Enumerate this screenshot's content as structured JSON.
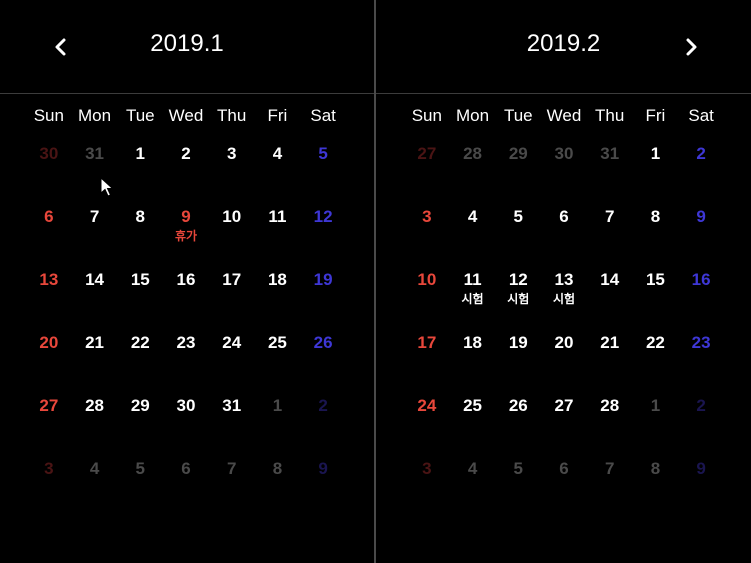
{
  "weekdays": [
    "Sun",
    "Mon",
    "Tue",
    "Wed",
    "Thu",
    "Fri",
    "Sat"
  ],
  "colors": {
    "text": "#ffffff",
    "sunday": "#e8473b",
    "saturday": "#3e37d6",
    "dim": "#4a4a4a",
    "sunday_dim": "#4a1414",
    "saturday_dim": "#1a1550",
    "event": "#e8473b"
  },
  "calendars": [
    {
      "title": "2019.1",
      "nav_icon": "chevron-left-icon",
      "days": [
        {
          "d": "30",
          "t": "prev"
        },
        {
          "d": "31",
          "t": "prev"
        },
        {
          "d": "1",
          "t": "cur"
        },
        {
          "d": "2",
          "t": "cur"
        },
        {
          "d": "3",
          "t": "cur"
        },
        {
          "d": "4",
          "t": "cur"
        },
        {
          "d": "5",
          "t": "cur"
        },
        {
          "d": "6",
          "t": "cur"
        },
        {
          "d": "7",
          "t": "cur"
        },
        {
          "d": "8",
          "t": "cur"
        },
        {
          "d": "9",
          "t": "cur",
          "holiday": true,
          "event": "휴가"
        },
        {
          "d": "10",
          "t": "cur"
        },
        {
          "d": "11",
          "t": "cur"
        },
        {
          "d": "12",
          "t": "cur"
        },
        {
          "d": "13",
          "t": "cur"
        },
        {
          "d": "14",
          "t": "cur"
        },
        {
          "d": "15",
          "t": "cur"
        },
        {
          "d": "16",
          "t": "cur"
        },
        {
          "d": "17",
          "t": "cur"
        },
        {
          "d": "18",
          "t": "cur"
        },
        {
          "d": "19",
          "t": "cur"
        },
        {
          "d": "20",
          "t": "cur"
        },
        {
          "d": "21",
          "t": "cur"
        },
        {
          "d": "22",
          "t": "cur"
        },
        {
          "d": "23",
          "t": "cur"
        },
        {
          "d": "24",
          "t": "cur"
        },
        {
          "d": "25",
          "t": "cur"
        },
        {
          "d": "26",
          "t": "cur"
        },
        {
          "d": "27",
          "t": "cur"
        },
        {
          "d": "28",
          "t": "cur"
        },
        {
          "d": "29",
          "t": "cur"
        },
        {
          "d": "30",
          "t": "cur"
        },
        {
          "d": "31",
          "t": "cur"
        },
        {
          "d": "1",
          "t": "next"
        },
        {
          "d": "2",
          "t": "next"
        },
        {
          "d": "3",
          "t": "next"
        },
        {
          "d": "4",
          "t": "next"
        },
        {
          "d": "5",
          "t": "next"
        },
        {
          "d": "6",
          "t": "next"
        },
        {
          "d": "7",
          "t": "next"
        },
        {
          "d": "8",
          "t": "next"
        },
        {
          "d": "9",
          "t": "next"
        }
      ]
    },
    {
      "title": "2019.2",
      "nav_icon": "chevron-right-icon",
      "days": [
        {
          "d": "27",
          "t": "prev"
        },
        {
          "d": "28",
          "t": "prev"
        },
        {
          "d": "29",
          "t": "prev"
        },
        {
          "d": "30",
          "t": "prev"
        },
        {
          "d": "31",
          "t": "prev"
        },
        {
          "d": "1",
          "t": "cur"
        },
        {
          "d": "2",
          "t": "cur"
        },
        {
          "d": "3",
          "t": "cur"
        },
        {
          "d": "4",
          "t": "cur"
        },
        {
          "d": "5",
          "t": "cur"
        },
        {
          "d": "6",
          "t": "cur"
        },
        {
          "d": "7",
          "t": "cur"
        },
        {
          "d": "8",
          "t": "cur"
        },
        {
          "d": "9",
          "t": "cur"
        },
        {
          "d": "10",
          "t": "cur"
        },
        {
          "d": "11",
          "t": "cur",
          "event": "시험"
        },
        {
          "d": "12",
          "t": "cur",
          "event": "시험"
        },
        {
          "d": "13",
          "t": "cur",
          "event": "시험"
        },
        {
          "d": "14",
          "t": "cur"
        },
        {
          "d": "15",
          "t": "cur"
        },
        {
          "d": "16",
          "t": "cur"
        },
        {
          "d": "17",
          "t": "cur"
        },
        {
          "d": "18",
          "t": "cur"
        },
        {
          "d": "19",
          "t": "cur"
        },
        {
          "d": "20",
          "t": "cur"
        },
        {
          "d": "21",
          "t": "cur"
        },
        {
          "d": "22",
          "t": "cur"
        },
        {
          "d": "23",
          "t": "cur"
        },
        {
          "d": "24",
          "t": "cur"
        },
        {
          "d": "25",
          "t": "cur"
        },
        {
          "d": "26",
          "t": "cur"
        },
        {
          "d": "27",
          "t": "cur"
        },
        {
          "d": "28",
          "t": "cur"
        },
        {
          "d": "1",
          "t": "next"
        },
        {
          "d": "2",
          "t": "next"
        },
        {
          "d": "3",
          "t": "next"
        },
        {
          "d": "4",
          "t": "next"
        },
        {
          "d": "5",
          "t": "next"
        },
        {
          "d": "6",
          "t": "next"
        },
        {
          "d": "7",
          "t": "next"
        },
        {
          "d": "8",
          "t": "next"
        },
        {
          "d": "9",
          "t": "next"
        }
      ]
    }
  ],
  "cursor_icon": "mouse-pointer-icon"
}
